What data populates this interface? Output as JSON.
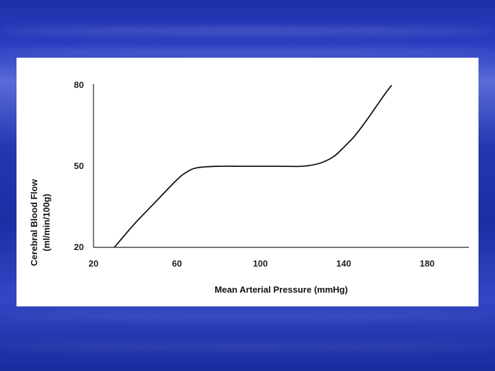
{
  "chart_data": {
    "type": "line",
    "xlabel": "Mean Arterial Pressure (mmHg)",
    "ylabel_line1": "Cerebral Blood Flow",
    "ylabel_line2": "(ml/min/100g)",
    "xlim": [
      20,
      200
    ],
    "ylim": [
      20,
      80
    ],
    "x_ticks": [
      20,
      60,
      100,
      140,
      180
    ],
    "y_ticks": [
      20,
      50,
      80
    ],
    "x_tick_labels": [
      "20",
      "60",
      "100",
      "140",
      "180"
    ],
    "y_tick_labels": [
      "20",
      "50",
      "80"
    ],
    "series": [
      {
        "color": "#111111",
        "x": [
          30,
          40,
          50,
          60,
          65,
          70,
          80,
          90,
          100,
          110,
          120,
          128,
          135,
          140,
          145,
          150,
          155,
          160,
          163
        ],
        "y": [
          20,
          29,
          37,
          45,
          48,
          49.5,
          50,
          50,
          50,
          50,
          50,
          51,
          53.5,
          57,
          61,
          66,
          71.5,
          77,
          80
        ]
      }
    ]
  }
}
